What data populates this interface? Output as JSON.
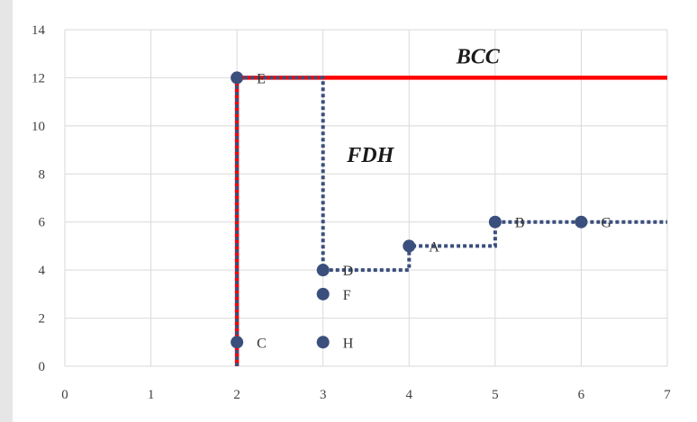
{
  "chart_data": {
    "type": "scatter",
    "xlim": [
      0,
      7
    ],
    "ylim": [
      0,
      14
    ],
    "x_ticks": [
      0,
      1,
      2,
      3,
      4,
      5,
      6,
      7
    ],
    "y_ticks": [
      0,
      2,
      4,
      6,
      8,
      10,
      12,
      14
    ],
    "grid": true,
    "points": [
      {
        "label": "E",
        "x": 2,
        "y": 12
      },
      {
        "label": "C",
        "x": 2,
        "y": 1
      },
      {
        "label": "D",
        "x": 3,
        "y": 4
      },
      {
        "label": "F",
        "x": 3,
        "y": 3
      },
      {
        "label": "H",
        "x": 3,
        "y": 1
      },
      {
        "label": "A",
        "x": 4,
        "y": 5
      },
      {
        "label": "B",
        "x": 5,
        "y": 6
      },
      {
        "label": "G",
        "x": 6,
        "y": 6
      }
    ],
    "frontiers": [
      {
        "name": "BCC",
        "style": "solid",
        "color": "#ff0000",
        "path": [
          [
            2,
            0
          ],
          [
            2,
            12
          ],
          [
            7,
            12
          ]
        ]
      },
      {
        "name": "FDH",
        "style": "dotted",
        "color": "#3b4f7d",
        "path": [
          [
            2,
            0
          ],
          [
            2,
            12
          ],
          [
            3,
            12
          ],
          [
            3,
            4
          ],
          [
            4,
            4
          ],
          [
            4,
            5
          ],
          [
            5,
            5
          ],
          [
            5,
            6
          ],
          [
            7,
            6
          ]
        ]
      }
    ],
    "annotations": [
      {
        "text": "BCC",
        "x": 4.8,
        "y": 12.6
      },
      {
        "text": "FDH",
        "x": 3.55,
        "y": 8.5
      }
    ],
    "marker_color": "#3b4f7d",
    "grid_color": "#d9d9d9"
  }
}
